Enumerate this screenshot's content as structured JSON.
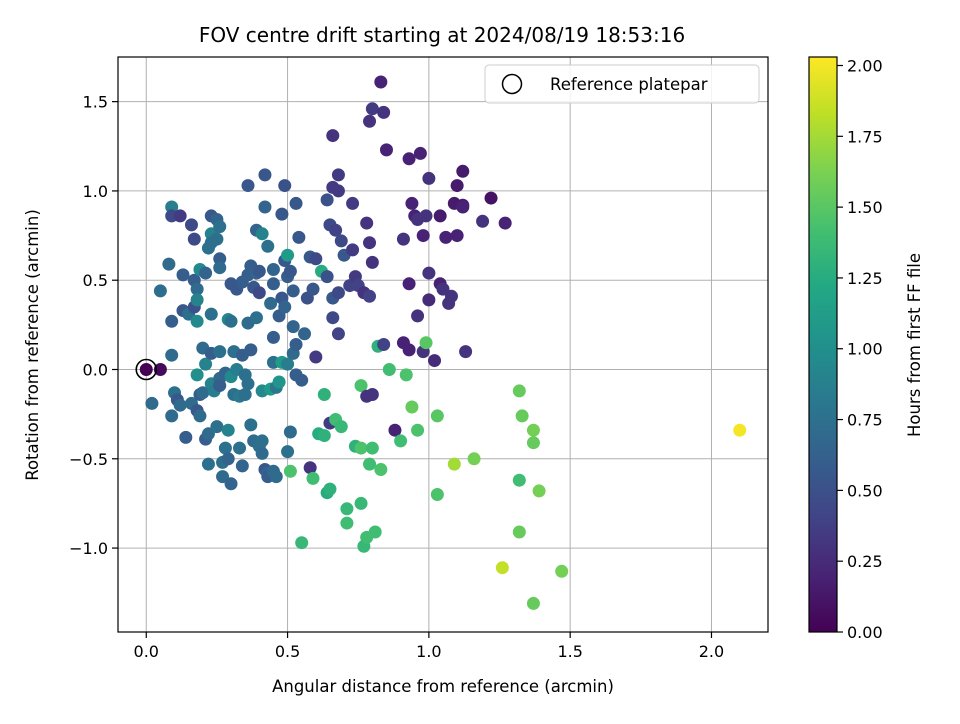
{
  "chart_data": {
    "type": "scatter",
    "title": "FOV centre drift starting at 2024/08/19 18:53:16",
    "xlabel": "Angular distance from reference (arcmin)",
    "ylabel": "Rotation from reference (arcmin)",
    "xlim": [
      -0.1,
      2.2
    ],
    "ylim": [
      -1.47,
      1.75
    ],
    "x_ticks": [
      0.0,
      0.5,
      1.0,
      1.5,
      2.0
    ],
    "x_tick_labels": [
      "0.0",
      "0.5",
      "1.0",
      "1.5",
      "2.0"
    ],
    "y_ticks": [
      -1.0,
      -0.5,
      0.0,
      0.5,
      1.0,
      1.5
    ],
    "y_tick_labels": [
      "−1.0",
      "−0.5",
      "0.0",
      "0.5",
      "1.0",
      "1.5"
    ],
    "grid": true,
    "legend": {
      "position": "top-right",
      "entries": [
        "Reference platepar"
      ]
    },
    "reference_point": {
      "x": 0.0,
      "y": 0.0
    },
    "colorbar": {
      "label": "Hours from first FF file",
      "colormap": "viridis",
      "range": [
        0.0,
        2.03
      ],
      "ticks": [
        0.0,
        0.25,
        0.5,
        0.75,
        1.0,
        1.25,
        1.5,
        1.75,
        2.0
      ],
      "tick_labels": [
        "0.00",
        "0.25",
        "0.50",
        "0.75",
        "1.00",
        "1.25",
        "1.50",
        "1.75",
        "2.00"
      ]
    },
    "points": [
      {
        "x": 0.0,
        "y": 0.0,
        "c": 0.0
      },
      {
        "x": 0.05,
        "y": 0.0,
        "c": 0.05
      },
      {
        "x": 0.02,
        "y": -0.19,
        "c": 0.7
      },
      {
        "x": 0.05,
        "y": 0.44,
        "c": 0.72
      },
      {
        "x": 0.08,
        "y": 0.59,
        "c": 0.7
      },
      {
        "x": 0.09,
        "y": 0.27,
        "c": 0.6
      },
      {
        "x": 0.09,
        "y": 0.08,
        "c": 0.7
      },
      {
        "x": 0.09,
        "y": -0.26,
        "c": 0.7
      },
      {
        "x": 0.09,
        "y": 0.91,
        "c": 0.85
      },
      {
        "x": 0.09,
        "y": 0.86,
        "c": 0.45
      },
      {
        "x": 0.12,
        "y": 0.86,
        "c": 0.35
      },
      {
        "x": 0.1,
        "y": -0.13,
        "c": 0.75
      },
      {
        "x": 0.11,
        "y": -0.17,
        "c": 0.55
      },
      {
        "x": 0.12,
        "y": -0.2,
        "c": 0.7
      },
      {
        "x": 0.13,
        "y": 0.53,
        "c": 0.6
      },
      {
        "x": 0.13,
        "y": 0.33,
        "c": 0.55
      },
      {
        "x": 0.14,
        "y": -0.38,
        "c": 0.6
      },
      {
        "x": 0.15,
        "y": 0.31,
        "c": 0.75
      },
      {
        "x": 0.16,
        "y": -0.19,
        "c": 0.7
      },
      {
        "x": 0.16,
        "y": 0.81,
        "c": 0.45
      },
      {
        "x": 0.17,
        "y": 0.73,
        "c": 0.45
      },
      {
        "x": 0.17,
        "y": 0.5,
        "c": 0.6
      },
      {
        "x": 0.17,
        "y": 0.35,
        "c": 0.5
      },
      {
        "x": 0.18,
        "y": 0.45,
        "c": 0.7
      },
      {
        "x": 0.18,
        "y": 0.39,
        "c": 0.9
      },
      {
        "x": 0.18,
        "y": 0.27,
        "c": 0.95
      },
      {
        "x": 0.18,
        "y": -0.03,
        "c": 1.0
      },
      {
        "x": 0.18,
        "y": -0.23,
        "c": 0.55
      },
      {
        "x": 0.19,
        "y": 0.56,
        "c": 0.95
      },
      {
        "x": 0.19,
        "y": -0.14,
        "c": 0.6
      },
      {
        "x": 0.19,
        "y": -0.26,
        "c": 0.7
      },
      {
        "x": 0.2,
        "y": 0.12,
        "c": 0.7
      },
      {
        "x": 0.2,
        "y": -0.13,
        "c": 0.7
      },
      {
        "x": 0.21,
        "y": 0.54,
        "c": 0.65
      },
      {
        "x": 0.21,
        "y": 0.03,
        "c": 0.9
      },
      {
        "x": 0.21,
        "y": -0.39,
        "c": 0.6
      },
      {
        "x": 0.22,
        "y": 0.68,
        "c": 0.75
      },
      {
        "x": 0.22,
        "y": -0.36,
        "c": 0.7
      },
      {
        "x": 0.22,
        "y": -0.53,
        "c": 0.75
      },
      {
        "x": 0.23,
        "y": 0.86,
        "c": 0.55
      },
      {
        "x": 0.23,
        "y": 0.76,
        "c": 0.9
      },
      {
        "x": 0.23,
        "y": 0.71,
        "c": 0.75
      },
      {
        "x": 0.23,
        "y": 0.31,
        "c": 0.75
      },
      {
        "x": 0.23,
        "y": 0.09,
        "c": 0.6
      },
      {
        "x": 0.23,
        "y": -0.08,
        "c": 0.9
      },
      {
        "x": 0.24,
        "y": -0.12,
        "c": 0.85
      },
      {
        "x": 0.25,
        "y": 0.84,
        "c": 0.65
      },
      {
        "x": 0.25,
        "y": 0.73,
        "c": 0.75
      },
      {
        "x": 0.25,
        "y": -0.32,
        "c": 0.75
      },
      {
        "x": 0.26,
        "y": 0.8,
        "c": 0.75
      },
      {
        "x": 0.26,
        "y": 0.62,
        "c": 0.6
      },
      {
        "x": 0.26,
        "y": 0.57,
        "c": 0.7
      },
      {
        "x": 0.26,
        "y": 0.1,
        "c": 0.75
      },
      {
        "x": 0.26,
        "y": -0.05,
        "c": 0.7
      },
      {
        "x": 0.26,
        "y": -0.09,
        "c": 0.6
      },
      {
        "x": 0.27,
        "y": -0.52,
        "c": 0.75
      },
      {
        "x": 0.27,
        "y": -0.6,
        "c": 0.7
      },
      {
        "x": 0.28,
        "y": -0.44,
        "c": 0.75
      },
      {
        "x": 0.28,
        "y": -0.02,
        "c": 0.65
      },
      {
        "x": 0.29,
        "y": 0.28,
        "c": 0.95
      },
      {
        "x": 0.29,
        "y": -0.5,
        "c": 0.65
      },
      {
        "x": 0.29,
        "y": -0.34,
        "c": 0.9
      },
      {
        "x": 0.3,
        "y": 0.48,
        "c": 0.55
      },
      {
        "x": 0.3,
        "y": 0.27,
        "c": 0.75
      },
      {
        "x": 0.3,
        "y": -0.04,
        "c": 0.95
      },
      {
        "x": 0.3,
        "y": -0.64,
        "c": 0.65
      },
      {
        "x": 0.31,
        "y": 0.1,
        "c": 0.75
      },
      {
        "x": 0.31,
        "y": -0.14,
        "c": 0.75
      },
      {
        "x": 0.32,
        "y": 0.45,
        "c": 0.55
      },
      {
        "x": 0.32,
        "y": 0.0,
        "c": 0.85
      },
      {
        "x": 0.33,
        "y": -0.15,
        "c": 0.8
      },
      {
        "x": 0.33,
        "y": -0.44,
        "c": 0.75
      },
      {
        "x": 0.34,
        "y": 0.49,
        "c": 0.6
      },
      {
        "x": 0.34,
        "y": 0.08,
        "c": 0.6
      },
      {
        "x": 0.34,
        "y": -0.54,
        "c": 0.65
      },
      {
        "x": 0.35,
        "y": -0.03,
        "c": 0.75
      },
      {
        "x": 0.35,
        "y": -0.14,
        "c": 0.75
      },
      {
        "x": 0.36,
        "y": 1.03,
        "c": 0.55
      },
      {
        "x": 0.36,
        "y": 0.53,
        "c": 0.6
      },
      {
        "x": 0.36,
        "y": 0.26,
        "c": 0.7
      },
      {
        "x": 0.36,
        "y": -0.08,
        "c": 0.75
      },
      {
        "x": 0.37,
        "y": 0.58,
        "c": 0.6
      },
      {
        "x": 0.37,
        "y": 0.11,
        "c": 0.6
      },
      {
        "x": 0.37,
        "y": -0.31,
        "c": 0.75
      },
      {
        "x": 0.38,
        "y": 0.46,
        "c": 0.55
      },
      {
        "x": 0.38,
        "y": -0.4,
        "c": 0.7
      },
      {
        "x": 0.39,
        "y": 0.78,
        "c": 0.65
      },
      {
        "x": 0.39,
        "y": 0.54,
        "c": 0.65
      },
      {
        "x": 0.39,
        "y": 0.29,
        "c": 0.75
      },
      {
        "x": 0.4,
        "y": 0.55,
        "c": 0.55
      },
      {
        "x": 0.4,
        "y": 0.43,
        "c": 0.45
      },
      {
        "x": 0.4,
        "y": -0.43,
        "c": 0.75
      },
      {
        "x": 0.41,
        "y": 0.76,
        "c": 0.9
      },
      {
        "x": 0.41,
        "y": -0.12,
        "c": 0.95
      },
      {
        "x": 0.41,
        "y": -0.4,
        "c": 0.75
      },
      {
        "x": 0.41,
        "y": -0.47,
        "c": 0.7
      },
      {
        "x": 0.42,
        "y": 1.09,
        "c": 0.55
      },
      {
        "x": 0.42,
        "y": 0.91,
        "c": 0.65
      },
      {
        "x": 0.42,
        "y": -0.56,
        "c": 0.55
      },
      {
        "x": 0.43,
        "y": 0.69,
        "c": 0.75
      },
      {
        "x": 0.43,
        "y": -0.58,
        "c": 0.65
      },
      {
        "x": 0.43,
        "y": -0.6,
        "c": 0.6
      },
      {
        "x": 0.44,
        "y": 0.37,
        "c": 0.7
      },
      {
        "x": 0.44,
        "y": -0.11,
        "c": 1.1
      },
      {
        "x": 0.45,
        "y": 0.56,
        "c": 0.65
      },
      {
        "x": 0.45,
        "y": 0.48,
        "c": 0.6
      },
      {
        "x": 0.45,
        "y": 0.18,
        "c": 0.6
      },
      {
        "x": 0.45,
        "y": 0.04,
        "c": 0.75
      },
      {
        "x": 0.45,
        "y": -0.57,
        "c": 0.7
      },
      {
        "x": 0.46,
        "y": -0.1,
        "c": 0.8
      },
      {
        "x": 0.46,
        "y": -0.6,
        "c": 0.7
      },
      {
        "x": 0.47,
        "y": 0.3,
        "c": 0.6
      },
      {
        "x": 0.47,
        "y": -0.07,
        "c": 1.05
      },
      {
        "x": 0.48,
        "y": 0.87,
        "c": 0.55
      },
      {
        "x": 0.48,
        "y": 0.4,
        "c": 0.55
      },
      {
        "x": 0.48,
        "y": 0.04,
        "c": 1.1
      },
      {
        "x": 0.49,
        "y": 1.03,
        "c": 0.5
      },
      {
        "x": 0.49,
        "y": 0.61,
        "c": 0.55
      },
      {
        "x": 0.49,
        "y": 0.35,
        "c": 0.65
      },
      {
        "x": 0.5,
        "y": 0.64,
        "c": 1.1
      },
      {
        "x": 0.5,
        "y": 0.52,
        "c": 0.6
      },
      {
        "x": 0.5,
        "y": 0.03,
        "c": 0.85
      },
      {
        "x": 0.5,
        "y": -0.46,
        "c": 0.75
      },
      {
        "x": 0.51,
        "y": 0.55,
        "c": 0.55
      },
      {
        "x": 0.51,
        "y": -0.57,
        "c": 1.45
      },
      {
        "x": 0.51,
        "y": -0.35,
        "c": 0.7
      },
      {
        "x": 0.52,
        "y": 0.44,
        "c": 0.6
      },
      {
        "x": 0.52,
        "y": 0.24,
        "c": 0.65
      },
      {
        "x": 0.52,
        "y": 0.09,
        "c": 0.7
      },
      {
        "x": 0.53,
        "y": 0.93,
        "c": 0.55
      },
      {
        "x": 0.53,
        "y": 0.14,
        "c": 0.6
      },
      {
        "x": 0.53,
        "y": -0.03,
        "c": 0.6
      },
      {
        "x": 0.54,
        "y": 0.74,
        "c": 0.55
      },
      {
        "x": 0.55,
        "y": -0.97,
        "c": 1.35
      },
      {
        "x": 0.55,
        "y": -0.06,
        "c": 0.6
      },
      {
        "x": 0.56,
        "y": 0.2,
        "c": 0.65
      },
      {
        "x": 0.57,
        "y": 0.4,
        "c": 0.5
      },
      {
        "x": 0.58,
        "y": 0.63,
        "c": 0.55
      },
      {
        "x": 0.58,
        "y": -0.55,
        "c": 0.3
      },
      {
        "x": 0.59,
        "y": 0.45,
        "c": 0.55
      },
      {
        "x": 0.59,
        "y": -0.61,
        "c": 1.4
      },
      {
        "x": 0.6,
        "y": 0.62,
        "c": 0.45
      },
      {
        "x": 0.6,
        "y": 0.07,
        "c": 0.35
      },
      {
        "x": 0.61,
        "y": -0.36,
        "c": 1.25
      },
      {
        "x": 0.62,
        "y": 0.55,
        "c": 1.25
      },
      {
        "x": 0.63,
        "y": -0.14,
        "c": 1.3
      },
      {
        "x": 0.63,
        "y": -0.37,
        "c": 1.3
      },
      {
        "x": 0.64,
        "y": 0.95,
        "c": 0.5
      },
      {
        "x": 0.64,
        "y": 0.52,
        "c": 0.5
      },
      {
        "x": 0.64,
        "y": -0.69,
        "c": 1.25
      },
      {
        "x": 0.65,
        "y": 0.81,
        "c": 0.45
      },
      {
        "x": 0.65,
        "y": -0.3,
        "c": 0.35
      },
      {
        "x": 0.65,
        "y": -0.67,
        "c": 1.3
      },
      {
        "x": 0.66,
        "y": 1.31,
        "c": 0.3
      },
      {
        "x": 0.66,
        "y": 1.02,
        "c": 0.35
      },
      {
        "x": 0.66,
        "y": 0.4,
        "c": 0.55
      },
      {
        "x": 0.66,
        "y": 0.29,
        "c": 0.45
      },
      {
        "x": 0.67,
        "y": 0.78,
        "c": 0.4
      },
      {
        "x": 0.67,
        "y": -0.28,
        "c": 1.4
      },
      {
        "x": 0.68,
        "y": 1.09,
        "c": 0.35
      },
      {
        "x": 0.68,
        "y": 1.0,
        "c": 0.35
      },
      {
        "x": 0.68,
        "y": 0.43,
        "c": 0.45
      },
      {
        "x": 0.68,
        "y": 0.2,
        "c": 0.4
      },
      {
        "x": 0.69,
        "y": 0.72,
        "c": 0.45
      },
      {
        "x": 0.69,
        "y": -0.32,
        "c": 1.35
      },
      {
        "x": 0.7,
        "y": 0.64,
        "c": 0.55
      },
      {
        "x": 0.71,
        "y": -0.78,
        "c": 1.35
      },
      {
        "x": 0.71,
        "y": -0.86,
        "c": 1.4
      },
      {
        "x": 0.72,
        "y": 0.47,
        "c": 0.4
      },
      {
        "x": 0.73,
        "y": 0.93,
        "c": 0.35
      },
      {
        "x": 0.73,
        "y": 0.67,
        "c": 0.35
      },
      {
        "x": 0.74,
        "y": 0.52,
        "c": 0.35
      },
      {
        "x": 0.74,
        "y": -0.43,
        "c": 1.3
      },
      {
        "x": 0.75,
        "y": 0.47,
        "c": 0.4
      },
      {
        "x": 0.76,
        "y": -0.44,
        "c": 1.45
      },
      {
        "x": 0.76,
        "y": -0.09,
        "c": 1.45
      },
      {
        "x": 0.76,
        "y": -0.75,
        "c": 1.35
      },
      {
        "x": 0.77,
        "y": -0.99,
        "c": 1.35
      },
      {
        "x": 0.77,
        "y": 0.43,
        "c": 0.3
      },
      {
        "x": 0.78,
        "y": 0.82,
        "c": 0.3
      },
      {
        "x": 0.78,
        "y": -0.94,
        "c": 1.4
      },
      {
        "x": 0.78,
        "y": -0.15,
        "c": 0.3
      },
      {
        "x": 0.79,
        "y": 1.39,
        "c": 0.3
      },
      {
        "x": 0.79,
        "y": 0.71,
        "c": 0.3
      },
      {
        "x": 0.79,
        "y": 0.41,
        "c": 0.4
      },
      {
        "x": 0.79,
        "y": -0.53,
        "c": 1.4
      },
      {
        "x": 0.8,
        "y": 1.46,
        "c": 0.35
      },
      {
        "x": 0.8,
        "y": 0.6,
        "c": 0.3
      },
      {
        "x": 0.8,
        "y": -0.44,
        "c": 1.4
      },
      {
        "x": 0.8,
        "y": -0.14,
        "c": 0.3
      },
      {
        "x": 0.81,
        "y": -0.91,
        "c": 1.4
      },
      {
        "x": 0.82,
        "y": 0.13,
        "c": 1.3
      },
      {
        "x": 0.83,
        "y": 1.61,
        "c": 0.2
      },
      {
        "x": 0.83,
        "y": -0.56,
        "c": 1.45
      },
      {
        "x": 0.84,
        "y": 1.44,
        "c": 0.3
      },
      {
        "x": 0.84,
        "y": 0.14,
        "c": 0.4
      },
      {
        "x": 0.85,
        "y": 1.23,
        "c": 0.2
      },
      {
        "x": 0.86,
        "y": 0.0,
        "c": 1.4
      },
      {
        "x": 0.88,
        "y": -0.34,
        "c": 0.2
      },
      {
        "x": 0.9,
        "y": -0.4,
        "c": 1.4
      },
      {
        "x": 0.91,
        "y": 0.73,
        "c": 0.3
      },
      {
        "x": 0.91,
        "y": 0.15,
        "c": 0.2
      },
      {
        "x": 0.92,
        "y": -0.03,
        "c": 1.45
      },
      {
        "x": 0.93,
        "y": 1.18,
        "c": 0.2
      },
      {
        "x": 0.93,
        "y": 0.48,
        "c": 0.2
      },
      {
        "x": 0.93,
        "y": 0.11,
        "c": 0.2
      },
      {
        "x": 0.94,
        "y": 0.93,
        "c": 0.2
      },
      {
        "x": 0.94,
        "y": -0.21,
        "c": 1.55
      },
      {
        "x": 0.95,
        "y": 0.86,
        "c": 0.2
      },
      {
        "x": 0.96,
        "y": 0.84,
        "c": 0.3
      },
      {
        "x": 0.96,
        "y": 0.3,
        "c": 0.3
      },
      {
        "x": 0.96,
        "y": -0.34,
        "c": 1.45
      },
      {
        "x": 0.97,
        "y": 1.21,
        "c": 0.2
      },
      {
        "x": 0.98,
        "y": 0.75,
        "c": 0.2
      },
      {
        "x": 0.98,
        "y": 0.1,
        "c": 0.3
      },
      {
        "x": 0.99,
        "y": 0.86,
        "c": 0.3
      },
      {
        "x": 0.99,
        "y": 0.15,
        "c": 1.5
      },
      {
        "x": 1.0,
        "y": 1.07,
        "c": 0.3
      },
      {
        "x": 1.0,
        "y": 0.54,
        "c": 0.3
      },
      {
        "x": 1.0,
        "y": 0.39,
        "c": 0.25
      },
      {
        "x": 1.02,
        "y": 0.05,
        "c": 0.25
      },
      {
        "x": 1.03,
        "y": -0.7,
        "c": 1.45
      },
      {
        "x": 1.03,
        "y": -0.26,
        "c": 1.5
      },
      {
        "x": 1.04,
        "y": 0.86,
        "c": 0.15
      },
      {
        "x": 1.04,
        "y": 0.48,
        "c": 0.2
      },
      {
        "x": 1.05,
        "y": 0.45,
        "c": 0.3
      },
      {
        "x": 1.06,
        "y": 0.74,
        "c": 0.2
      },
      {
        "x": 1.07,
        "y": 0.37,
        "c": 0.3
      },
      {
        "x": 1.08,
        "y": 0.41,
        "c": 0.3
      },
      {
        "x": 1.09,
        "y": 0.93,
        "c": 0.15
      },
      {
        "x": 1.09,
        "y": -0.53,
        "c": 1.75
      },
      {
        "x": 1.1,
        "y": 1.03,
        "c": 0.15
      },
      {
        "x": 1.1,
        "y": 0.75,
        "c": 0.2
      },
      {
        "x": 1.12,
        "y": 1.11,
        "c": 0.15
      },
      {
        "x": 1.12,
        "y": 0.92,
        "c": 0.15
      },
      {
        "x": 1.12,
        "y": 0.91,
        "c": 0.2
      },
      {
        "x": 1.13,
        "y": 0.1,
        "c": 0.3
      },
      {
        "x": 1.16,
        "y": -0.5,
        "c": 1.6
      },
      {
        "x": 1.19,
        "y": 0.83,
        "c": 0.3
      },
      {
        "x": 1.22,
        "y": 0.96,
        "c": 0.1
      },
      {
        "x": 1.26,
        "y": -1.11,
        "c": 1.85
      },
      {
        "x": 1.27,
        "y": 0.82,
        "c": 0.2
      },
      {
        "x": 1.32,
        "y": -0.12,
        "c": 1.55
      },
      {
        "x": 1.32,
        "y": -0.62,
        "c": 1.4
      },
      {
        "x": 1.32,
        "y": -0.91,
        "c": 1.55
      },
      {
        "x": 1.33,
        "y": -0.26,
        "c": 1.55
      },
      {
        "x": 1.37,
        "y": -0.34,
        "c": 1.6
      },
      {
        "x": 1.37,
        "y": -0.41,
        "c": 1.55
      },
      {
        "x": 1.37,
        "y": -1.31,
        "c": 1.55
      },
      {
        "x": 1.39,
        "y": -0.68,
        "c": 1.6
      },
      {
        "x": 1.47,
        "y": -1.13,
        "c": 1.6
      },
      {
        "x": 2.1,
        "y": -0.34,
        "c": 2.0
      }
    ]
  }
}
